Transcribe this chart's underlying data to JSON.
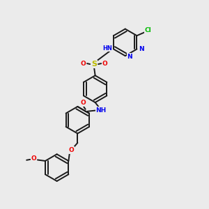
{
  "bg_color": "#ebebeb",
  "bond_color": "#1a1a1a",
  "bond_width": 1.4,
  "atom_colors": {
    "N": "#0000ee",
    "O": "#ee0000",
    "S": "#bbbb00",
    "Cl": "#00bb00",
    "C": "#1a1a1a"
  },
  "font_size": 6.5,
  "fig_size": [
    3.0,
    3.0
  ],
  "dpi": 100
}
